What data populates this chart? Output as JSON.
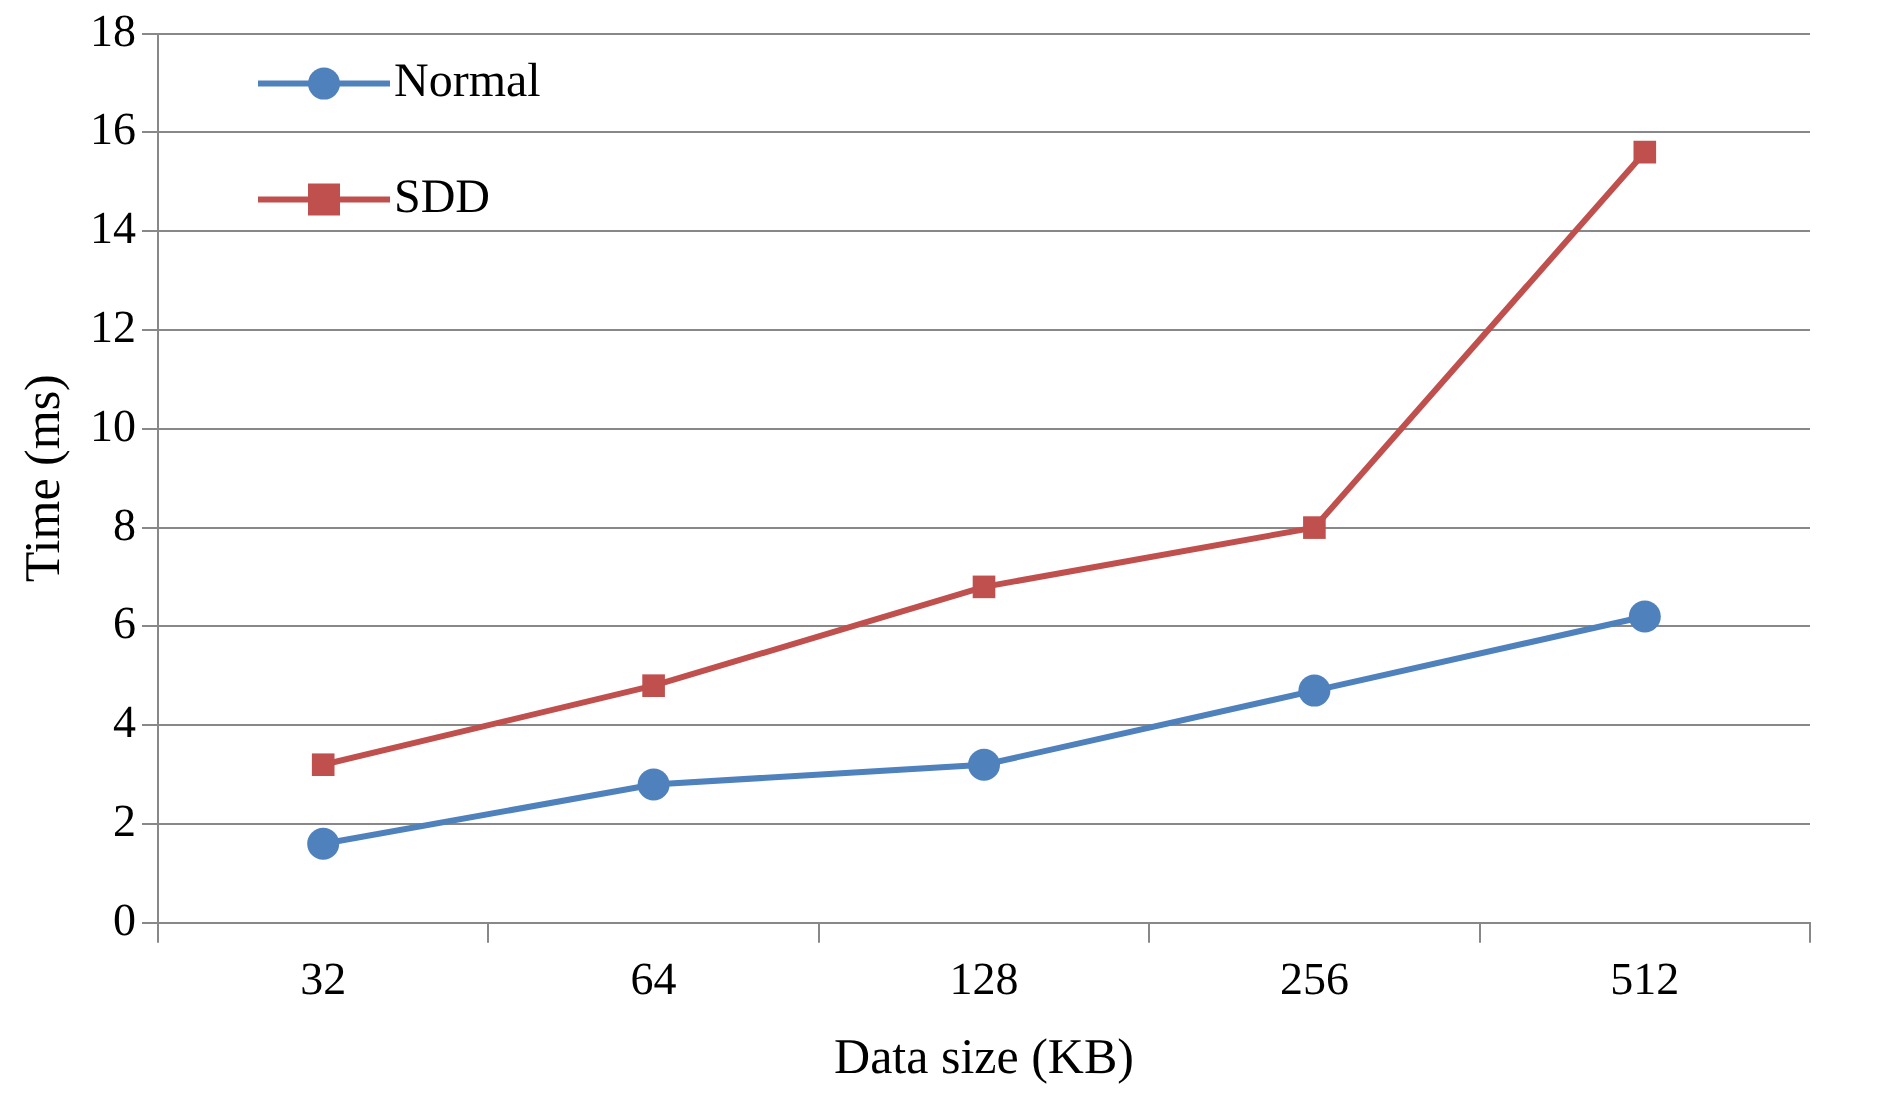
{
  "chart_data": {
    "type": "line",
    "xlabel": "Data size (KB)",
    "ylabel": "Time (ms)",
    "categories": [
      "32",
      "64",
      "128",
      "256",
      "512"
    ],
    "series": [
      {
        "name": "Normal",
        "color": "#4f81bd",
        "marker": "circle",
        "values": [
          1.6,
          2.8,
          3.2,
          4.7,
          6.2
        ]
      },
      {
        "name": "SDD",
        "color": "#c0504d",
        "marker": "square",
        "values": [
          3.2,
          4.8,
          6.8,
          8.0,
          15.6
        ]
      }
    ],
    "ylim": [
      0,
      18
    ],
    "yticks": [
      0,
      2,
      4,
      6,
      8,
      10,
      12,
      14,
      16,
      18
    ],
    "grid": "y",
    "legend": "top left",
    "line_style": "solid"
  }
}
